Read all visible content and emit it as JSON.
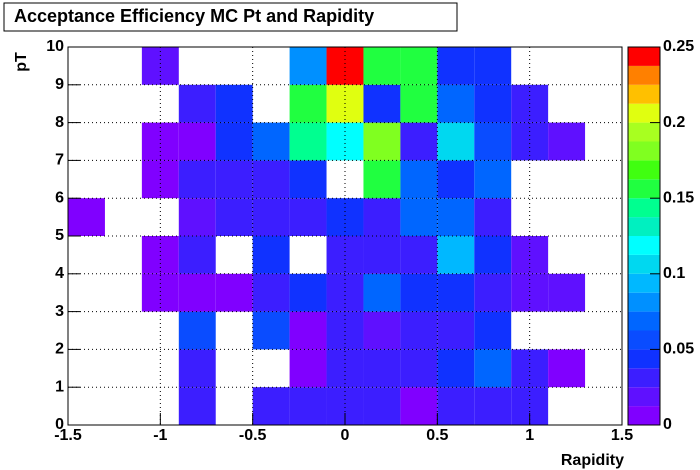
{
  "chart_data": {
    "type": "heatmap",
    "title": "Acceptance Efficiency MC Pt and Rapidity",
    "x_label": "Rapidity",
    "y_label": "pT",
    "xlim": [
      -1.5,
      1.5
    ],
    "ylim": [
      0,
      10
    ],
    "zlim": [
      0,
      0.25
    ],
    "xticks": [
      -1.5,
      -1,
      -0.5,
      0,
      0.5,
      1,
      1.5
    ],
    "yticks": [
      0,
      1,
      2,
      3,
      4,
      5,
      6,
      7,
      8,
      9,
      10
    ],
    "zticks": [
      0,
      0.05,
      0.1,
      0.15,
      0.2,
      0.25
    ],
    "xbins": [
      -1.5,
      -1.3,
      -1.1,
      -0.9,
      -0.7,
      -0.5,
      -0.3,
      -0.1,
      0.1,
      0.3,
      0.5,
      0.7,
      0.9,
      1.1,
      1.3,
      1.5
    ],
    "ybins": [
      0,
      1,
      2,
      3,
      4,
      5,
      6,
      7,
      8,
      9,
      10
    ],
    "grid": true,
    "colorscale": [
      "#8000ff",
      "#5f10ff",
      "#3c1eff",
      "#1032ff",
      "#0a4cff",
      "#0066ff",
      "#0090ff",
      "#00b8ff",
      "#00d8f0",
      "#00ffff",
      "#00f0c0",
      "#00ff90",
      "#20ff40",
      "#40ff10",
      "#80ff20",
      "#a8ff20",
      "#e0ff10",
      "#ffc000",
      "#ff8000",
      "#ff0000"
    ],
    "z": [
      [
        null,
        null,
        null,
        0.025,
        null,
        0.025,
        0.035,
        0.025,
        0.035,
        0.012,
        0.035,
        0.035,
        0.025,
        null,
        null
      ],
      [
        null,
        null,
        null,
        0.035,
        null,
        null,
        0.012,
        0.035,
        0.035,
        0.025,
        0.045,
        0.065,
        0.035,
        0.012,
        null
      ],
      [
        null,
        null,
        null,
        0.05,
        null,
        0.05,
        0.012,
        0.025,
        0.015,
        0.025,
        0.035,
        0.045,
        null,
        null,
        null
      ],
      [
        null,
        null,
        0.012,
        0.012,
        0.012,
        0.035,
        0.045,
        0.035,
        0.07,
        0.045,
        0.04,
        0.035,
        0.015,
        0.015,
        null
      ],
      [
        null,
        null,
        0.012,
        0.035,
        null,
        0.045,
        null,
        0.035,
        0.035,
        0.035,
        0.09,
        0.045,
        0.02,
        null,
        null
      ],
      [
        0.012,
        null,
        null,
        0.015,
        0.035,
        0.035,
        0.025,
        0.045,
        0.025,
        0.07,
        0.07,
        0.035,
        null,
        null,
        null
      ],
      [
        null,
        null,
        0.012,
        0.035,
        0.035,
        0.035,
        0.045,
        null,
        0.16,
        0.07,
        0.045,
        0.07,
        null,
        null,
        null
      ],
      [
        null,
        null,
        0.012,
        0.012,
        0.045,
        0.065,
        0.14,
        0.12,
        0.175,
        0.035,
        0.1,
        0.06,
        0.025,
        0.015,
        null
      ],
      [
        null,
        null,
        null,
        0.025,
        0.045,
        null,
        0.16,
        0.2,
        0.045,
        0.16,
        0.07,
        0.045,
        0.025,
        null,
        null
      ],
      [
        null,
        null,
        0.015,
        null,
        null,
        null,
        0.075,
        0.245,
        0.16,
        0.15,
        0.045,
        0.045,
        null,
        null,
        null
      ]
    ]
  }
}
